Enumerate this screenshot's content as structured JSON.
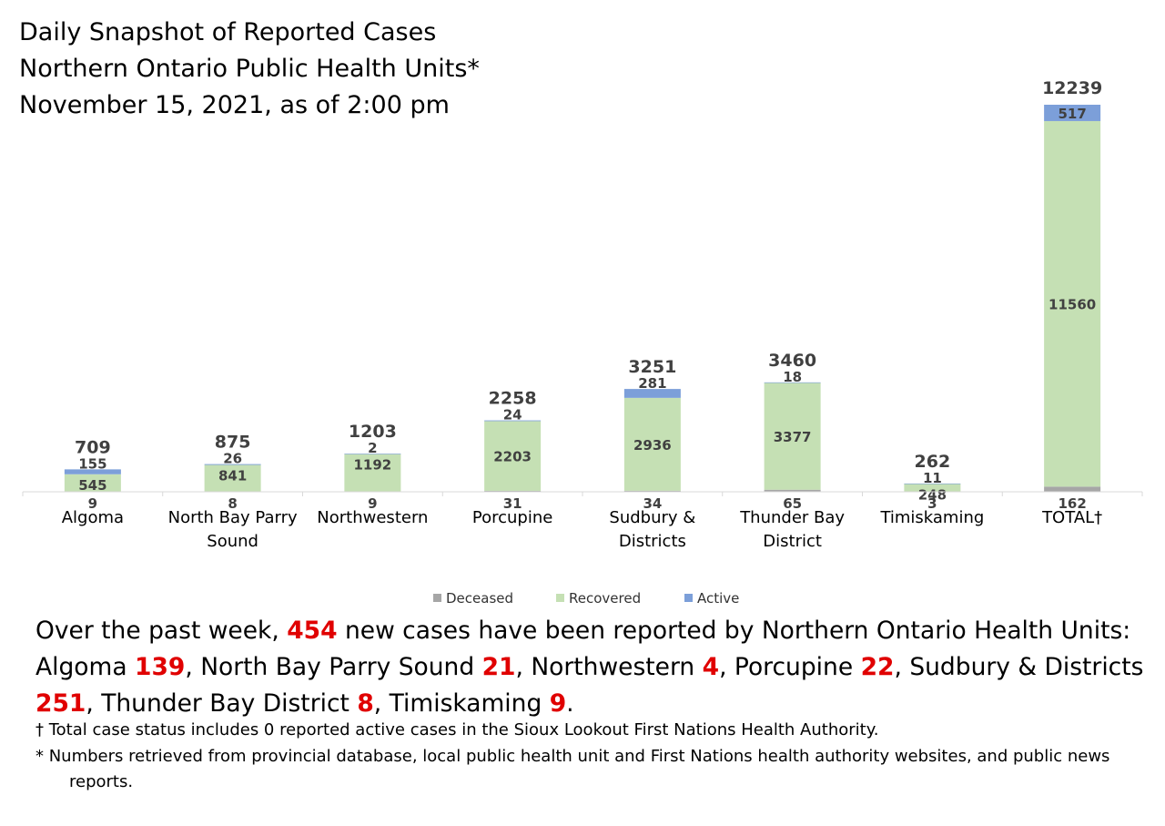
{
  "title_lines": [
    "Daily Snapshot of Reported Cases",
    "Northern Ontario Public Health Units*",
    "November 15, 2021, as of 2:00 pm"
  ],
  "chart_data": {
    "type": "bar",
    "stacked": true,
    "categories": [
      [
        "Algoma"
      ],
      [
        "North Bay Parry",
        "Sound"
      ],
      [
        "Northwestern"
      ],
      [
        "Porcupine"
      ],
      [
        "Sudbury &",
        "Districts"
      ],
      [
        "Thunder Bay",
        "District"
      ],
      [
        "Timiskaming"
      ],
      [
        "TOTAL†"
      ]
    ],
    "series": [
      {
        "name": "Deceased",
        "color": "#a6a6a6",
        "values": [
          9,
          8,
          9,
          31,
          34,
          65,
          3,
          162
        ]
      },
      {
        "name": "Recovered",
        "color": "#c5e0b4",
        "values": [
          545,
          841,
          1192,
          2203,
          2936,
          3377,
          248,
          11560
        ]
      },
      {
        "name": "Active",
        "color": "#7c9fd9",
        "values": [
          155,
          26,
          2,
          24,
          281,
          18,
          11,
          517
        ]
      }
    ],
    "totals": [
      709,
      875,
      1203,
      2258,
      3251,
      3460,
      262,
      12239
    ],
    "ylim": [
      0,
      12239
    ],
    "legend": "bottom",
    "grid": false
  },
  "summary": {
    "intro": "Over the past week, ",
    "total_new": "454",
    "after_total": " new cases have been reported by Northern Ontario Health Units:",
    "units": [
      {
        "name": "Algoma ",
        "count": "139"
      },
      {
        "name": "North Bay Parry Sound ",
        "count": "21"
      },
      {
        "name": "Northwestern ",
        "count": "4"
      },
      {
        "name": "Porcupine ",
        "count": "22"
      },
      {
        "name": "Sudbury & Districts ",
        "count": "251"
      },
      {
        "name": "Thunder Bay District ",
        "count": "8"
      },
      {
        "name": "Timiskaming ",
        "count": "9"
      }
    ]
  },
  "notes": [
    "† Total case status includes 0 reported active cases in the Sioux Lookout First Nations Health Authority.",
    "* Numbers retrieved from provincial database, local public health unit and First Nations health authority websites, and public news reports."
  ]
}
